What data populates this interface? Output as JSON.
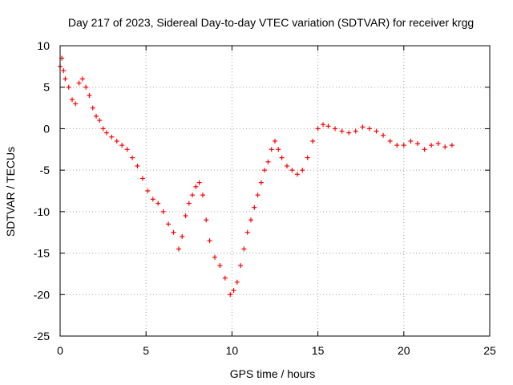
{
  "chart_data": {
    "type": "scatter",
    "title": "Day 217 of 2023, Sidereal Day-to-day VTEC variation (SDTVAR) for receiver krgg",
    "xlabel": "GPS time / hours",
    "ylabel": "SDTVAR / TECUs",
    "xlim": [
      0,
      25
    ],
    "ylim": [
      -25,
      10
    ],
    "xticks": [
      0,
      5,
      10,
      15,
      20,
      25
    ],
    "yticks": [
      10,
      5,
      0,
      -5,
      -10,
      -15,
      -20,
      -25
    ],
    "grid": true,
    "marker": "+",
    "series": [
      {
        "name": "SDTVAR",
        "color": "#ff0000",
        "x": [
          0.0,
          0.1,
          0.2,
          0.3,
          0.5,
          0.7,
          0.9,
          1.1,
          1.3,
          1.5,
          1.7,
          1.9,
          2.1,
          2.3,
          2.5,
          2.7,
          3.0,
          3.3,
          3.6,
          3.9,
          4.2,
          4.5,
          4.8,
          5.1,
          5.4,
          5.7,
          6.0,
          6.3,
          6.6,
          6.9,
          7.1,
          7.3,
          7.5,
          7.7,
          7.9,
          8.1,
          8.3,
          8.5,
          8.7,
          9.0,
          9.3,
          9.6,
          9.9,
          10.1,
          10.3,
          10.5,
          10.7,
          10.9,
          11.1,
          11.3,
          11.5,
          11.7,
          11.9,
          12.1,
          12.3,
          12.5,
          12.7,
          12.9,
          13.2,
          13.5,
          13.8,
          14.1,
          14.4,
          14.7,
          15.0,
          15.3,
          15.6,
          16.0,
          16.4,
          16.8,
          17.2,
          17.6,
          18.0,
          18.4,
          18.8,
          19.2,
          19.6,
          20.0,
          20.4,
          20.8,
          21.2,
          21.6,
          22.0,
          22.4,
          22.8
        ],
        "values": [
          7.5,
          8.5,
          7.0,
          6.0,
          5.0,
          3.5,
          3.0,
          5.5,
          6.0,
          5.0,
          4.0,
          2.5,
          1.5,
          1.0,
          0.0,
          -0.5,
          -1.0,
          -1.5,
          -2.0,
          -2.5,
          -3.5,
          -4.5,
          -6.0,
          -7.5,
          -8.5,
          -9.0,
          -10.0,
          -11.5,
          -12.5,
          -14.5,
          -13.0,
          -10.5,
          -9.0,
          -8.0,
          -7.0,
          -6.5,
          -8.0,
          -11.0,
          -13.5,
          -15.5,
          -16.5,
          -18.0,
          -20.0,
          -19.5,
          -18.5,
          -16.5,
          -14.5,
          -12.5,
          -11.0,
          -9.5,
          -8.0,
          -6.5,
          -5.0,
          -4.0,
          -2.5,
          -1.5,
          -2.5,
          -3.5,
          -4.5,
          -5.0,
          -5.5,
          -5.0,
          -3.5,
          -1.5,
          0.0,
          0.5,
          0.3,
          0.0,
          -0.3,
          -0.5,
          -0.3,
          0.2,
          0.0,
          -0.3,
          -0.8,
          -1.5,
          -2.0,
          -2.0,
          -1.5,
          -1.8,
          -2.5,
          -2.0,
          -1.8,
          -2.2,
          -2.0
        ]
      }
    ]
  }
}
